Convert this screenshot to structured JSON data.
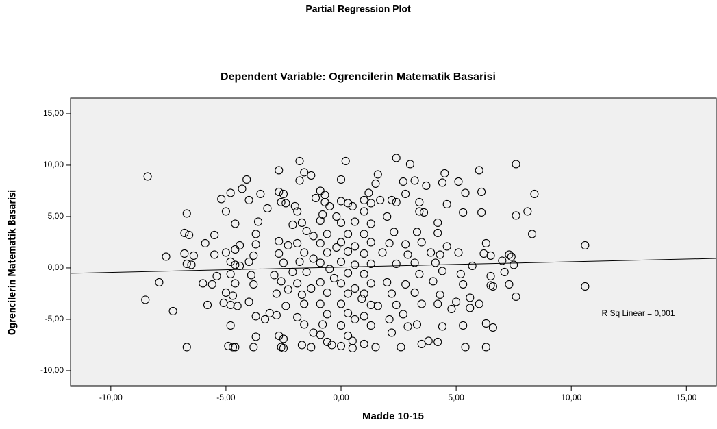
{
  "chart_data": {
    "type": "scatter",
    "title": "Partial Regression Plot",
    "subtitle": "Dependent Variable: Ogrencilerin Matematik Basarisi",
    "xlabel": "Madde 10-15",
    "ylabel": "Ogrencilerin Matematik Basarisi",
    "annotation": "R Sq Linear = 0,001",
    "color": "#000000",
    "plot_background": "#f0f0f0",
    "xlim": [
      -11.75,
      16.3
    ],
    "ylim": [
      -11.47,
      16.53
    ],
    "xticks": [
      {
        "value": -10,
        "label": "-10,00"
      },
      {
        "value": -5,
        "label": "-5,00"
      },
      {
        "value": 0,
        "label": "0,00"
      },
      {
        "value": 5,
        "label": "5,00"
      },
      {
        "value": 10,
        "label": "10,00"
      },
      {
        "value": 15,
        "label": "15,00"
      }
    ],
    "yticks": [
      {
        "value": -10,
        "label": "-10,00"
      },
      {
        "value": -5,
        "label": "-5,00"
      },
      {
        "value": 0,
        "label": "0,00"
      },
      {
        "value": 5,
        "label": "5,00"
      },
      {
        "value": 10,
        "label": "10,00"
      },
      {
        "value": 15,
        "label": "15,00"
      }
    ],
    "fit_line": {
      "x": [
        -11.75,
        16.3
      ],
      "y": [
        -0.53,
        0.93
      ]
    },
    "x": [
      -8.4,
      -8.5,
      -7.9,
      -7.6,
      -7.3,
      -6.7,
      -6.8,
      -6.6,
      -6.7,
      -6.5,
      -6.7,
      -6.4,
      -6.8,
      -5.9,
      -5.8,
      -5.6,
      -5.4,
      -5.5,
      -6.0,
      -5.5,
      -5.2,
      -5.0,
      -4.8,
      -4.8,
      -4.9,
      -4.7,
      -4.6,
      -4.6,
      -4.3,
      -4.1,
      -4.0,
      -4.4,
      -4.6,
      -5.0,
      -4.8,
      -4.6,
      -4.4,
      -4.8,
      -4.6,
      -5.0,
      -4.7,
      -5.1,
      -4.8,
      -4.5,
      -4.0,
      -3.8,
      -3.9,
      -4.0,
      -3.8,
      -3.7,
      -3.7,
      -3.6,
      -3.5,
      -3.2,
      -3.7,
      -3.7,
      -3.8,
      -3.1,
      -3.3,
      -2.7,
      -2.5,
      -2.6,
      -2.5,
      -2.7,
      -2.7,
      -2.5,
      -2.6,
      -2.4,
      -2.0,
      -2.1,
      -2.7,
      -2.3,
      -2.7,
      -2.5,
      -2.9,
      -2.6,
      -2.8,
      -2.4,
      -2.8,
      -2.3,
      -2.1,
      -1.8,
      -1.8,
      -1.6,
      -1.3,
      -1.9,
      -1.7,
      -1.5,
      -1.9,
      -1.6,
      -1.8,
      -1.5,
      -1.9,
      -1.7,
      -1.6,
      -1.9,
      -1.6,
      -1.7,
      -1.3,
      -1.2,
      -1.3,
      -1.2,
      -1.2,
      -1.1,
      -0.9,
      -0.7,
      -0.7,
      -0.5,
      -0.8,
      -0.9,
      -0.6,
      -0.9,
      -0.6,
      -0.9,
      -0.5,
      -0.9,
      -0.6,
      -0.9,
      -0.6,
      -0.8,
      -0.9,
      -0.6,
      -0.4,
      -0.3,
      -0.2,
      -0.2,
      0.0,
      0.2,
      0.0,
      0.3,
      0.5,
      0.0,
      0.3,
      0.0,
      0.3,
      0.0,
      0.3,
      0.0,
      0.3,
      0.0,
      0.3,
      0.0,
      0.3,
      0.0,
      0.5,
      0.5,
      0.6,
      0.6,
      0.6,
      0.6,
      0.6,
      0.9,
      1.0,
      1.2,
      1.3,
      1.0,
      1.3,
      1.0,
      1.3,
      1.0,
      1.3,
      1.0,
      1.3,
      1.0,
      1.3,
      1.0,
      1.3,
      1.0,
      1.5,
      1.5,
      1.6,
      1.6,
      1.7,
      1.8,
      2.0,
      2.2,
      2.4,
      2.4,
      2.0,
      2.3,
      2.1,
      2.4,
      2.2,
      2.4,
      2.1,
      2.2,
      2.6,
      2.7,
      2.8,
      3.0,
      2.8,
      2.9,
      2.8,
      2.7,
      2.9,
      3.2,
      3.4,
      3.6,
      3.7,
      3.4,
      3.3,
      3.5,
      3.2,
      3.4,
      3.2,
      3.5,
      3.3,
      3.5,
      3.8,
      3.9,
      4.0,
      4.2,
      4.2,
      4.4,
      4.5,
      4.2,
      4.3,
      4.1,
      4.4,
      4.3,
      4.2,
      4.4,
      4.6,
      4.6,
      4.8,
      5.0,
      5.1,
      5.2,
      5.1,
      5.3,
      5.4,
      5.3,
      5.3,
      5.4,
      5.6,
      5.6,
      5.7,
      6.0,
      6.1,
      6.1,
      6.2,
      6.3,
      6.3,
      6.3,
      6.0,
      6.5,
      6.5,
      6.6,
      6.6,
      6.5,
      7.0,
      7.1,
      7.3,
      7.3,
      7.4,
      7.5,
      7.6,
      7.6,
      7.6,
      8.1,
      8.4,
      8.3,
      10.6,
      10.6
    ],
    "values": [
      8.9,
      -3.1,
      -1.4,
      1.1,
      -4.2,
      5.3,
      3.4,
      3.2,
      0.4,
      0.3,
      -7.7,
      1.2,
      1.4,
      2.4,
      -3.6,
      -1.6,
      -0.8,
      3.2,
      -1.5,
      1.3,
      6.7,
      5.5,
      7.3,
      -5.6,
      -7.6,
      -7.7,
      -7.7,
      4.3,
      7.7,
      8.6,
      6.6,
      2.2,
      1.8,
      1.5,
      0.6,
      0.3,
      0.2,
      -0.6,
      -1.5,
      -2.4,
      -2.7,
      -3.4,
      -3.6,
      -3.7,
      -3.3,
      -1.6,
      -0.7,
      0.6,
      1.2,
      2.3,
      3.3,
      4.5,
      7.2,
      5.8,
      -4.7,
      -6.7,
      -7.7,
      -4.4,
      -5.0,
      -6.6,
      -6.9,
      -7.7,
      -7.8,
      9.5,
      7.4,
      7.2,
      6.4,
      6.3,
      6.0,
      4.2,
      2.6,
      2.2,
      1.4,
      0.5,
      -0.7,
      -1.3,
      -2.5,
      -3.7,
      -4.6,
      -2.1,
      -0.4,
      10.4,
      8.5,
      9.3,
      9.0,
      5.5,
      4.4,
      3.6,
      2.4,
      1.5,
      0.6,
      -0.4,
      -1.5,
      -2.6,
      -3.5,
      -4.8,
      -5.5,
      -7.5,
      -7.7,
      -6.3,
      -2.0,
      0.9,
      3.1,
      6.8,
      7.5,
      7.1,
      6.4,
      6.0,
      5.2,
      4.6,
      3.3,
      2.4,
      1.5,
      0.5,
      -0.1,
      -1.4,
      -2.4,
      -3.5,
      -4.5,
      -5.5,
      -6.5,
      -7.2,
      -7.5,
      -1.0,
      2.0,
      5.0,
      8.6,
      10.4,
      6.5,
      6.3,
      6.0,
      4.4,
      3.3,
      2.5,
      1.6,
      0.6,
      -0.5,
      -1.5,
      -2.5,
      -3.5,
      -4.4,
      -5.6,
      -6.6,
      -7.6,
      -7.8,
      -7.1,
      -5.0,
      -2.0,
      0.3,
      2.1,
      4.5,
      -3.0,
      6.6,
      7.3,
      6.3,
      5.5,
      4.3,
      3.3,
      2.5,
      1.4,
      0.4,
      -0.6,
      -1.5,
      -2.5,
      -3.6,
      -4.7,
      -5.6,
      -7.4,
      -7.7,
      8.2,
      9.1,
      -3.7,
      6.6,
      1.5,
      -1.4,
      6.6,
      10.7,
      6.4,
      5.0,
      3.5,
      2.4,
      0.4,
      -2.5,
      -3.6,
      -5.0,
      -6.3,
      -7.7,
      8.4,
      7.2,
      10.1,
      2.3,
      1.3,
      -1.6,
      -4.5,
      -5.7,
      8.5,
      5.5,
      5.4,
      8.0,
      6.4,
      3.5,
      2.5,
      0.5,
      -0.6,
      -2.4,
      -3.5,
      -5.5,
      -7.4,
      -7.1,
      1.5,
      -1.3,
      -7.2,
      4.4,
      8.3,
      9.2,
      3.4,
      1.3,
      0.5,
      -0.3,
      -2.6,
      -3.5,
      -5.7,
      6.2,
      2.1,
      -4.0,
      -3.3,
      1.5,
      -0.6,
      8.4,
      5.4,
      7.3,
      -1.6,
      -5.6,
      -7.7,
      -2.9,
      -3.9,
      0.2,
      9.5,
      7.4,
      5.4,
      1.4,
      2.4,
      -5.4,
      -7.7,
      -3.5,
      -0.8,
      -1.7,
      -1.8,
      -5.8,
      1.2,
      0.7,
      -0.4,
      1.3,
      -1.6,
      1.1,
      0.3,
      5.1,
      10.1,
      -2.8,
      5.5,
      7.2,
      3.3,
      2.2,
      -1.8
    ]
  }
}
